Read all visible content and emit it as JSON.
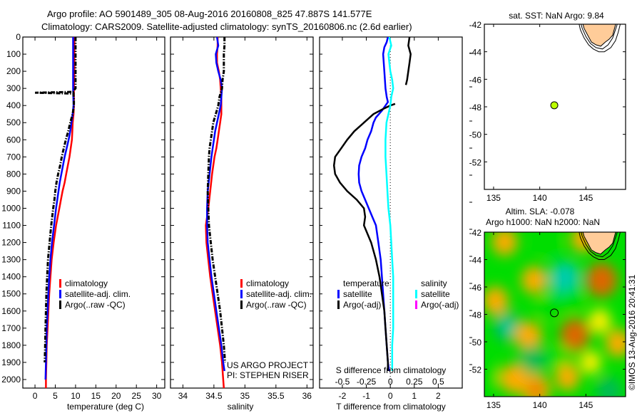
{
  "header": {
    "line1": "Argo profile: AO 5901489_305 08-Aug-2016 20160808_825 47.887S 141.577E",
    "line2": "Climatology: CARS2009. Satellite-adjusted climatology: synTS_20160806.nc (2.6d earlier)"
  },
  "colors": {
    "climatology": "#ff0000",
    "satellite": "#0000ff",
    "argo": "#000000",
    "salinity_satellite": "#00ffff",
    "salinity_argo": "#ff00ff",
    "land": "#ffcc99",
    "argo_marker": "#bbff00"
  },
  "chart_data": [
    {
      "id": "temperature",
      "type": "line",
      "title": "",
      "xlabel": "temperature (deg C)",
      "ylabel": "",
      "xlim": [
        -3,
        32
      ],
      "ylim": [
        2050,
        0
      ],
      "xticks": [
        0,
        5,
        10,
        15,
        20,
        25,
        30
      ],
      "yticks": [
        0,
        100,
        200,
        300,
        400,
        500,
        600,
        700,
        800,
        900,
        1000,
        1100,
        1200,
        1300,
        1400,
        1500,
        1600,
        1700,
        1800,
        1900,
        2000
      ],
      "legend": {
        "position": "center-left",
        "entries": [
          "climatology",
          "satellite-adj. clim.",
          "Argo(..raw -QC)"
        ]
      },
      "series": [
        {
          "name": "climatology",
          "color": "#ff0000",
          "style": "solid",
          "depth": [
            0,
            100,
            200,
            300,
            400,
            450,
            500,
            550,
            600,
            650,
            700,
            750,
            800,
            850,
            900,
            950,
            1000,
            1100,
            1200,
            1300,
            1400,
            1500,
            1600,
            1700,
            1800,
            1900,
            2000,
            2050
          ],
          "values": [
            9.7,
            9.7,
            9.7,
            9.6,
            9.6,
            9.5,
            9.3,
            9.2,
            9.1,
            8.8,
            8.5,
            8.1,
            7.7,
            7.3,
            6.8,
            6.4,
            6.0,
            5.2,
            4.6,
            4.1,
            3.8,
            3.5,
            3.3,
            3.1,
            2.9,
            2.8,
            2.7,
            2.7
          ]
        },
        {
          "name": "satellite-adj. clim.",
          "color": "#0000ff",
          "style": "solid",
          "depth": [
            0,
            100,
            200,
            300,
            400,
            450,
            500,
            550,
            600,
            650,
            700,
            750,
            800,
            850,
            900,
            950,
            1000,
            1100,
            1200,
            1300,
            1400,
            1500,
            1600,
            1700,
            1800,
            1900,
            2000
          ],
          "values": [
            9.4,
            9.4,
            9.4,
            9.4,
            9.5,
            9.3,
            9.0,
            8.7,
            8.3,
            7.8,
            7.3,
            6.9,
            6.5,
            6.1,
            5.8,
            5.5,
            5.2,
            4.7,
            4.2,
            3.8,
            3.5,
            3.3,
            3.1,
            2.9,
            2.8,
            2.7,
            2.6
          ]
        },
        {
          "name": "Argo(..raw -QC)",
          "color": "#000000",
          "style": "dashdot",
          "depth": [
            0,
            100,
            200,
            300,
            305,
            320,
            325,
            330,
            340,
            360,
            400,
            450,
            500,
            550,
            600,
            650,
            700,
            750,
            800,
            850,
            900,
            950,
            1000,
            1100,
            1200,
            1300,
            1400,
            1500,
            1600,
            1700,
            1800,
            1900
          ],
          "values": [
            10.0,
            10.0,
            10.0,
            10.0,
            9.8,
            9.4,
            0.0,
            9.5,
            9.5,
            9.6,
            9.6,
            9.3,
            8.7,
            8.2,
            7.6,
            7.1,
            6.6,
            6.2,
            5.7,
            5.3,
            5.0,
            4.8,
            4.5,
            4.0,
            3.6,
            3.2,
            3.0,
            2.8,
            2.7,
            2.6,
            2.5,
            2.4
          ]
        }
      ]
    },
    {
      "id": "salinity",
      "type": "line",
      "title": "",
      "xlabel": "salinity",
      "ylabel": "",
      "xlim": [
        33.8,
        36.1
      ],
      "ylim": [
        2050,
        0
      ],
      "xticks": [
        34,
        34.5,
        35,
        35.5,
        36
      ],
      "legend": {
        "position": "center-right",
        "entries": [
          "climatology",
          "satellite-adj. clim.",
          "Argo(..raw -QC)"
        ]
      },
      "annotation": [
        "US ARGO PROJECT",
        "PI: STEPHEN RISER"
      ],
      "series": [
        {
          "name": "climatology",
          "color": "#ff0000",
          "style": "solid",
          "depth": [
            0,
            50,
            100,
            150,
            200,
            250,
            300,
            350,
            400,
            450,
            500,
            550,
            600,
            650,
            700,
            800,
            900,
            1000,
            1100,
            1200,
            1300,
            1400,
            1500,
            1600,
            1700,
            1800,
            1900,
            2000,
            2050
          ],
          "values": [
            34.56,
            34.56,
            34.55,
            34.55,
            34.58,
            34.6,
            34.61,
            34.62,
            34.62,
            34.62,
            34.6,
            34.58,
            34.56,
            34.54,
            34.51,
            34.47,
            34.44,
            34.41,
            34.37,
            34.38,
            34.41,
            34.44,
            34.48,
            34.52,
            34.56,
            34.6,
            34.63,
            34.65,
            34.66
          ]
        },
        {
          "name": "satellite-adj. clim.",
          "color": "#0000ff",
          "style": "solid",
          "depth": [
            0,
            50,
            100,
            150,
            200,
            250,
            300,
            350,
            400,
            450,
            500,
            550,
            600,
            650,
            700,
            800,
            900,
            1000,
            1100,
            1200,
            1300,
            1400,
            1500,
            1600,
            1700,
            1800,
            1900,
            1950
          ],
          "values": [
            34.55,
            34.57,
            34.53,
            34.54,
            34.57,
            34.61,
            34.63,
            34.62,
            34.61,
            34.58,
            34.55,
            34.52,
            34.5,
            34.48,
            34.46,
            34.43,
            34.4,
            34.39,
            34.39,
            34.4,
            34.43,
            34.46,
            34.5,
            34.54,
            34.58,
            34.62,
            34.65,
            34.67
          ]
        },
        {
          "name": "Argo(..raw -QC)",
          "color": "#000000",
          "style": "dashdot",
          "depth": [
            0,
            50,
            100,
            150,
            200,
            250,
            300,
            350,
            400,
            450,
            500,
            550,
            600,
            650,
            700,
            800,
            900,
            1000,
            1100,
            1200,
            1300,
            1400,
            1500,
            1600,
            1700,
            1800,
            1900
          ],
          "values": [
            34.67,
            34.67,
            34.66,
            34.66,
            34.66,
            34.64,
            34.63,
            34.59,
            34.57,
            34.53,
            34.49,
            34.47,
            34.45,
            34.43,
            34.42,
            34.41,
            34.4,
            34.41,
            34.42,
            34.45,
            34.48,
            34.52,
            34.56,
            34.6,
            34.63,
            34.66,
            34.68
          ]
        }
      ]
    },
    {
      "id": "difference",
      "type": "line",
      "title": "",
      "xlabel": "T difference from climatology",
      "x2label": "S difference from climatology",
      "xlim": [
        -2.95,
        3.0
      ],
      "x2lim": [
        -0.7375,
        0.75
      ],
      "ylim": [
        2050,
        0
      ],
      "xticks": [
        -2,
        -1,
        0,
        1,
        2
      ],
      "x2ticks": [
        "-0.5",
        "-0.25",
        "0",
        "0.25",
        "0.5"
      ],
      "x2tick_values": [
        -0.5,
        -0.25,
        0,
        0.25,
        0.5
      ],
      "legend": {
        "position": "lower-center",
        "groups": [
          {
            "heading": "temperature",
            "entries": [
              "satellite",
              "Argo(-adj)"
            ]
          },
          {
            "heading": "salinity",
            "entries": [
              "satellite",
              "Argo(-adj)"
            ]
          }
        ]
      },
      "series": [
        {
          "name": "temperature satellite",
          "color": "#0000ff",
          "axis": "T",
          "depth": [
            0,
            30,
            60,
            100,
            200,
            300,
            350,
            380,
            400,
            430,
            470,
            500,
            550,
            600,
            650,
            700,
            750,
            800,
            850,
            900,
            950,
            1000,
            1050,
            1100,
            1200,
            1300,
            1400,
            1500,
            1600,
            1700,
            1800,
            1900,
            1950
          ],
          "values": [
            -0.1,
            -0.15,
            -0.25,
            -0.3,
            -0.25,
            -0.2,
            -0.15,
            -0.1,
            -0.2,
            -0.35,
            -0.6,
            -0.7,
            -0.8,
            -0.95,
            -1.05,
            -1.2,
            -1.3,
            -1.32,
            -1.3,
            -1.2,
            -1.05,
            -0.9,
            -0.75,
            -0.6,
            -0.5,
            -0.4,
            -0.35,
            -0.3,
            -0.25,
            -0.2,
            -0.15,
            -0.1,
            -0.05
          ]
        },
        {
          "name": "temperature Argo(-adj)",
          "color": "#000000",
          "axis": "T",
          "segments": [
            {
              "depth": [
                0,
                50,
                100,
                150,
                200,
                250,
                280
              ],
              "values": [
                0.8,
                0.75,
                0.85,
                0.8,
                0.75,
                0.7,
                0.65
              ]
            },
            {
              "depth": [
                390,
                400,
                420,
                450,
                500,
                550,
                600,
                650,
                700,
                750,
                800,
                850,
                900,
                950,
                1000,
                1050,
                1100,
                1200,
                1300,
                1400,
                1500,
                1600,
                1700,
                1800,
                1900,
                1950
              ],
              "values": [
                0.2,
                0.0,
                -0.3,
                -0.7,
                -1.1,
                -1.5,
                -1.8,
                -2.05,
                -2.3,
                -2.35,
                -2.3,
                -2.1,
                -1.8,
                -1.4,
                -1.1,
                -1.05,
                -1.1,
                -0.8,
                -0.6,
                -0.45,
                -0.35,
                -0.25,
                -0.2,
                -0.15,
                -0.1,
                -0.1
              ]
            }
          ]
        },
        {
          "name": "salinity satellite",
          "color": "#00ffff",
          "axis": "S",
          "depth": [
            0,
            50,
            100,
            150,
            200,
            250,
            300,
            350,
            400,
            450,
            500,
            600,
            700,
            800,
            900,
            1000,
            1100,
            1200,
            1300,
            1400,
            1500,
            1600,
            1700,
            1800,
            1900,
            1950
          ],
          "values": [
            -0.01,
            0.01,
            -0.02,
            -0.01,
            0.0,
            0.02,
            0.03,
            0.01,
            0.0,
            -0.02,
            -0.04,
            -0.05,
            -0.05,
            -0.04,
            -0.03,
            -0.02,
            0.0,
            0.01,
            0.02,
            0.03,
            0.03,
            0.03,
            0.03,
            0.02,
            0.02,
            0.02
          ]
        }
      ]
    },
    {
      "id": "sst-map",
      "type": "scatter",
      "title": "sat. SST: NaN Argo: 9.84",
      "xlim": [
        134,
        149.3
      ],
      "ylim": [
        -54,
        -42
      ],
      "xticks": [
        135,
        140,
        145
      ],
      "yticks": [
        -42,
        -44,
        -46,
        -48,
        -50,
        -52
      ],
      "points": [
        {
          "lon": 141.577,
          "lat": -47.887,
          "color": "#bbff00"
        }
      ]
    },
    {
      "id": "sla-map",
      "type": "heatmap",
      "title_line1": "Altim. SLA: -0.078",
      "title_line2": "Argo h1000: NaN h2000: NaN",
      "xlim": [
        134,
        149.3
      ],
      "ylim": [
        -54,
        -42
      ],
      "xticks": [
        135,
        140,
        145
      ],
      "yticks": [
        -42,
        -44,
        -46,
        -48,
        -50,
        -52
      ],
      "colorscale": [
        "#00ccaa",
        "#00bb55",
        "#00dd00",
        "#bbff00",
        "#ffee00",
        "#ffaa00",
        "#dd6600"
      ],
      "blobs": [
        {
          "lon": 136.2,
          "lat": -42.7,
          "v": 0.6
        },
        {
          "lon": 139.4,
          "lat": -45.5,
          "v": 0.6
        },
        {
          "lon": 142.7,
          "lat": -45.4,
          "v": -1.0
        },
        {
          "lon": 146.7,
          "lat": -45.5,
          "v": 1.0
        },
        {
          "lon": 135.2,
          "lat": -47.0,
          "v": 0.6
        },
        {
          "lon": 136.5,
          "lat": -48.9,
          "v": -0.8
        },
        {
          "lon": 138.8,
          "lat": -49.6,
          "v": 0.7
        },
        {
          "lon": 143.8,
          "lat": -49.5,
          "v": 0.9
        },
        {
          "lon": 146.5,
          "lat": -48.5,
          "v": 0.4
        },
        {
          "lon": 148.5,
          "lat": -50.1,
          "v": 0.6
        },
        {
          "lon": 139.2,
          "lat": -51.3,
          "v": -0.7
        },
        {
          "lon": 142.3,
          "lat": -51.2,
          "v": -0.5
        },
        {
          "lon": 137.2,
          "lat": -52.7,
          "v": 0.7
        },
        {
          "lon": 139.6,
          "lat": -53.5,
          "v": 0.8
        },
        {
          "lon": 143.0,
          "lat": -52.6,
          "v": 0.5
        },
        {
          "lon": 147.5,
          "lat": -53.6,
          "v": -0.6
        },
        {
          "lon": 141.0,
          "lat": -42.8,
          "v": -0.3
        },
        {
          "lon": 144.7,
          "lat": -42.5,
          "v": 0.5
        },
        {
          "lon": 134.5,
          "lat": -52.5,
          "v": -0.4
        },
        {
          "lon": 145.5,
          "lat": -51.5,
          "v": 0.3
        },
        {
          "lon": 141.0,
          "lat": -47.5,
          "v": -0.5
        },
        {
          "lon": 143.5,
          "lat": -47.0,
          "v": -0.4
        }
      ],
      "points": [
        {
          "lon": 141.577,
          "lat": -47.887,
          "color": "none"
        }
      ],
      "watermark": "©IMOS 13-Aug-2016 20:41:31"
    }
  ]
}
